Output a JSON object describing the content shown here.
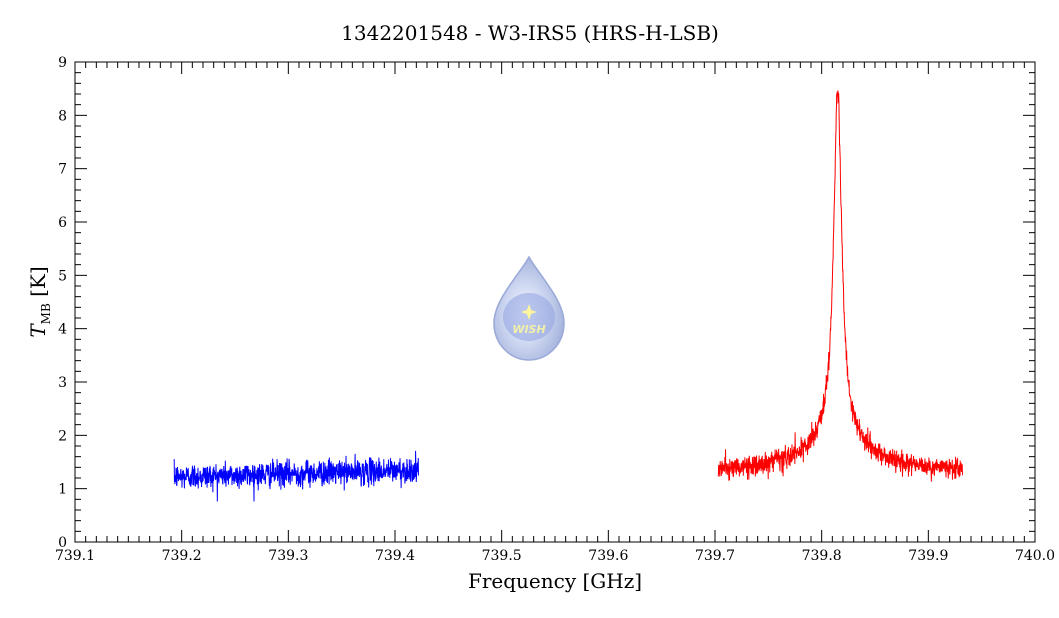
{
  "chart_data": {
    "type": "line",
    "title": "1342201548 - W3-IRS5 (HRS-H-LSB)",
    "xlabel": "Frequency [GHz]",
    "ylabel_main": "T",
    "ylabel_sub": "MB",
    "ylabel_unit": "[K]",
    "xlim": [
      739.1,
      740.0
    ],
    "ylim": [
      0,
      9
    ],
    "x_ticks": [
      "739.1",
      "739.2",
      "739.3",
      "739.4",
      "739.5",
      "739.6",
      "739.7",
      "739.8",
      "739.9",
      "740.0"
    ],
    "y_ticks": [
      "0",
      "1",
      "2",
      "3",
      "4",
      "5",
      "6",
      "7",
      "8",
      "9"
    ],
    "grid": false,
    "series": [
      {
        "color": "#0000ff",
        "x_range": [
          739.193,
          739.422
        ],
        "points": 1100,
        "baseline": [
          1.22,
          1.35
        ],
        "noise": 0.12
      },
      {
        "color": "#ff0000",
        "x_range": [
          739.703,
          739.932
        ],
        "points": 1100,
        "baseline": [
          1.35,
          1.35
        ],
        "noise": 0.1,
        "peak": {
          "center": 739.815,
          "amplitude": 6.3,
          "width": 0.0045,
          "wing_amplitude": 0.85,
          "wing_width": 0.03
        }
      }
    ],
    "logo": {
      "text": "WISH",
      "color": "#b8c4e6"
    }
  }
}
